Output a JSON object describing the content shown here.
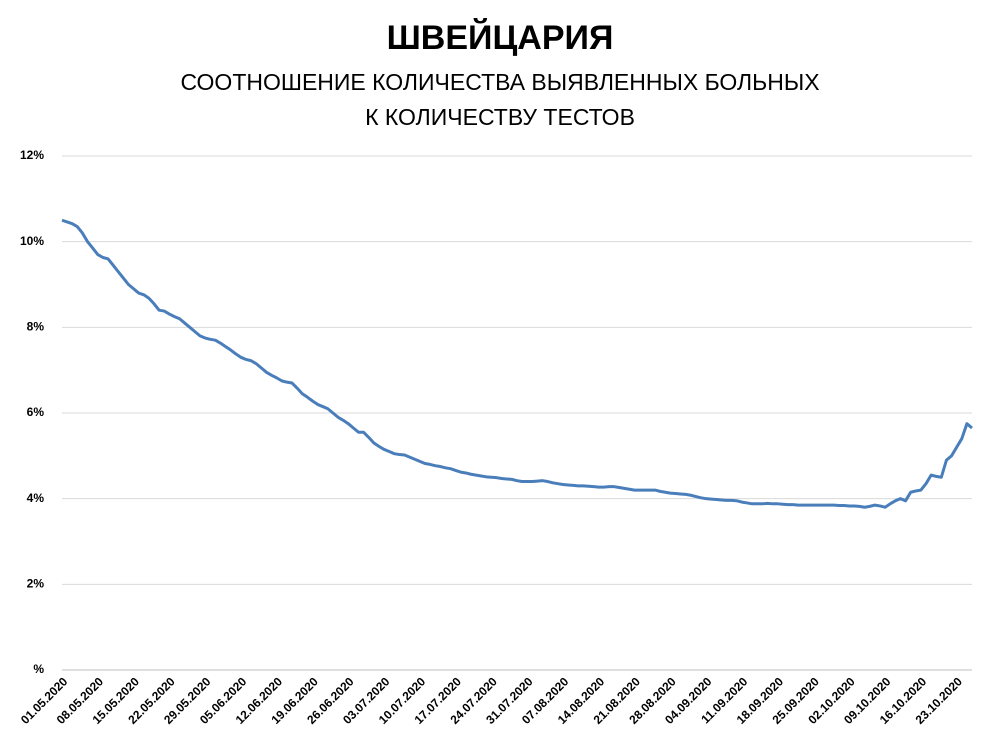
{
  "chart_data": {
    "type": "line",
    "title": "ШВЕЙЦАРИЯ",
    "subtitle": [
      "СООТНОШЕНИЕ КОЛИЧЕСТВА ВЫЯВЛЕННЫХ БОЛЬНЫХ",
      "К КОЛИЧЕСТВУ ТЕСТОВ"
    ],
    "categories": [
      "01.05.2020",
      null,
      null,
      null,
      null,
      null,
      null,
      "08.05.2020",
      null,
      null,
      null,
      null,
      null,
      null,
      "15.05.2020",
      null,
      null,
      null,
      null,
      null,
      null,
      "22.05.2020",
      null,
      null,
      null,
      null,
      null,
      null,
      "29.05.2020",
      null,
      null,
      null,
      null,
      null,
      null,
      "05.06.2020",
      null,
      null,
      null,
      null,
      null,
      null,
      "12.06.2020",
      null,
      null,
      null,
      null,
      null,
      null,
      "19.06.2020",
      null,
      null,
      null,
      null,
      null,
      null,
      "26.06.2020",
      null,
      null,
      null,
      null,
      null,
      null,
      "03.07.2020",
      null,
      null,
      null,
      null,
      null,
      null,
      "10.07.2020",
      null,
      null,
      null,
      null,
      null,
      null,
      "17.07.2020",
      null,
      null,
      null,
      null,
      null,
      null,
      "24.07.2020",
      null,
      null,
      null,
      null,
      null,
      null,
      "31.07.2020",
      null,
      null,
      null,
      null,
      null,
      null,
      "07.08.2020",
      null,
      null,
      null,
      null,
      null,
      null,
      "14.08.2020",
      null,
      null,
      null,
      null,
      null,
      null,
      "21.08.2020",
      null,
      null,
      null,
      null,
      null,
      null,
      "28.08.2020",
      null,
      null,
      null,
      null,
      null,
      null,
      "04.09.2020",
      null,
      null,
      null,
      null,
      null,
      null,
      "11.09.2020",
      null,
      null,
      null,
      null,
      null,
      null,
      "18.09.2020",
      null,
      null,
      null,
      null,
      null,
      null,
      "25.09.2020",
      null,
      null,
      null,
      null,
      null,
      null,
      "02.10.2020",
      null,
      null,
      null,
      null,
      null,
      null,
      "09.10.2020",
      null,
      null,
      null,
      null,
      null,
      null,
      "16.10.2020",
      null,
      null,
      null,
      null,
      null,
      null,
      "23.10.2020",
      null,
      null,
      null
    ],
    "values": [
      10.5,
      10.46,
      10.42,
      10.35,
      10.2,
      10.0,
      9.85,
      9.7,
      9.63,
      9.6,
      9.45,
      9.3,
      9.15,
      9.0,
      8.9,
      8.8,
      8.76,
      8.68,
      8.55,
      8.4,
      8.38,
      8.31,
      8.25,
      8.2,
      8.1,
      8.0,
      7.9,
      7.8,
      7.75,
      7.72,
      7.7,
      7.63,
      7.55,
      7.47,
      7.38,
      7.3,
      7.25,
      7.22,
      7.15,
      7.05,
      6.95,
      6.88,
      6.82,
      6.75,
      6.72,
      6.7,
      6.58,
      6.45,
      6.37,
      6.28,
      6.2,
      6.15,
      6.1,
      6.0,
      5.9,
      5.83,
      5.75,
      5.65,
      5.55,
      5.55,
      5.43,
      5.3,
      5.22,
      5.15,
      5.1,
      5.05,
      5.03,
      5.02,
      4.97,
      4.92,
      4.87,
      4.82,
      4.8,
      4.77,
      4.75,
      4.72,
      4.7,
      4.66,
      4.62,
      4.6,
      4.57,
      4.55,
      4.53,
      4.51,
      4.5,
      4.49,
      4.47,
      4.46,
      4.45,
      4.42,
      4.4,
      4.4,
      4.4,
      4.41,
      4.42,
      4.4,
      4.37,
      4.35,
      4.33,
      4.32,
      4.31,
      4.3,
      4.3,
      4.29,
      4.28,
      4.27,
      4.27,
      4.28,
      4.28,
      4.26,
      4.24,
      4.22,
      4.2,
      4.2,
      4.2,
      4.2,
      4.2,
      4.17,
      4.15,
      4.13,
      4.12,
      4.11,
      4.1,
      4.08,
      4.05,
      4.02,
      4.0,
      3.99,
      3.98,
      3.97,
      3.96,
      3.96,
      3.95,
      3.92,
      3.9,
      3.88,
      3.88,
      3.88,
      3.89,
      3.88,
      3.88,
      3.87,
      3.86,
      3.86,
      3.85,
      3.85,
      3.85,
      3.85,
      3.85,
      3.85,
      3.85,
      3.85,
      3.84,
      3.84,
      3.83,
      3.83,
      3.82,
      3.8,
      3.82,
      3.85,
      3.83,
      3.8,
      3.88,
      3.95,
      4.0,
      3.95,
      4.15,
      4.18,
      4.2,
      4.35,
      4.55,
      4.52,
      4.5,
      4.9,
      5.0,
      5.2,
      5.4,
      5.75,
      5.65
    ],
    "color": "#4a7ebb",
    "ylim": [
      0,
      12
    ],
    "yticks": [
      {
        "value": 0,
        "label": "%"
      },
      {
        "value": 2,
        "label": "2%"
      },
      {
        "value": 4,
        "label": "4%"
      },
      {
        "value": 6,
        "label": "6%"
      },
      {
        "value": 8,
        "label": "8%"
      },
      {
        "value": 10,
        "label": "10%"
      },
      {
        "value": 12,
        "label": "12%"
      }
    ],
    "grid": true
  }
}
